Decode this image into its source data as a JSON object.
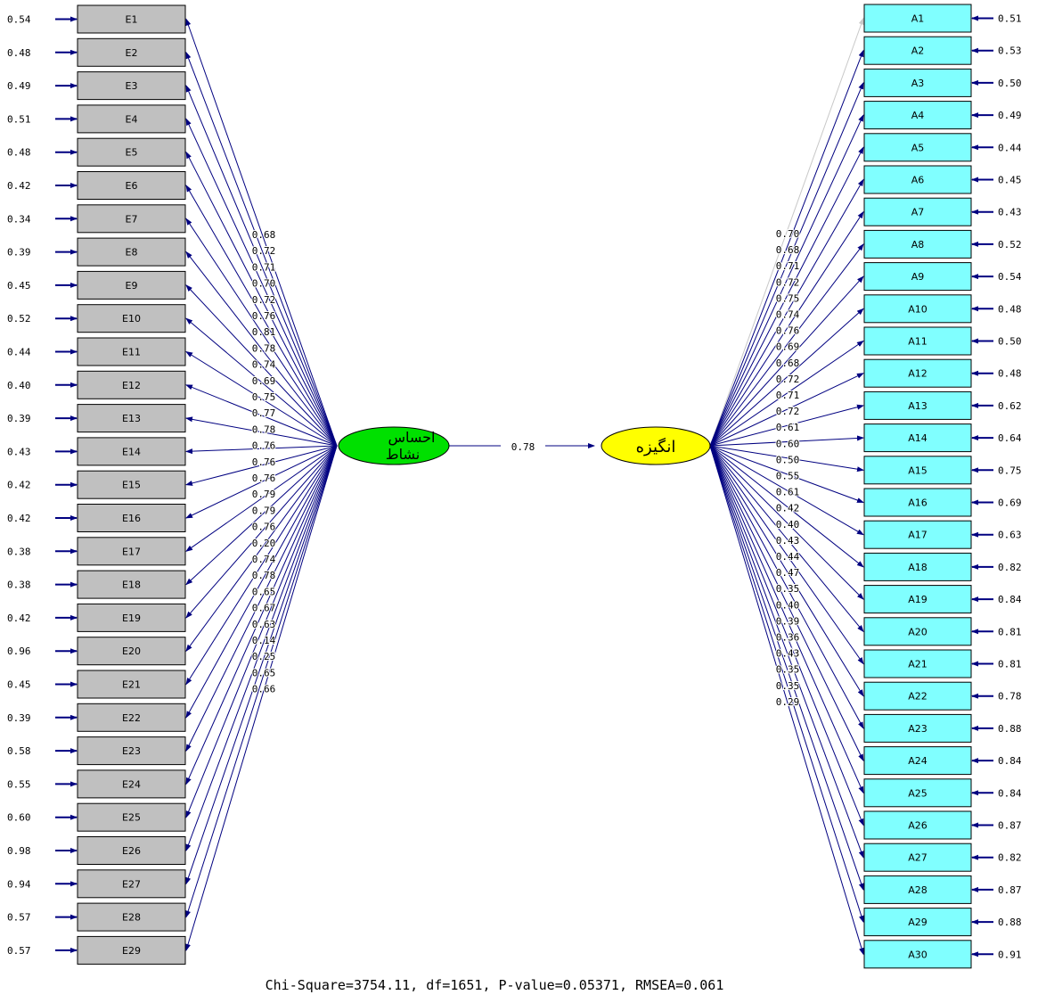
{
  "colors": {
    "arrow": "#000080",
    "ebox_fill": "#c0c0c0",
    "abox_fill": "#80ffff",
    "latent_left_fill": "#00e000",
    "latent_right_fill": "#ffff00",
    "faint_arrow": "#c8c8c8"
  },
  "left_latent": {
    "label_line1": "احساس",
    "label_line2": "نشاط"
  },
  "right_latent": {
    "label": "انگیزه"
  },
  "structural_path": {
    "value": "0.78"
  },
  "left_indicators": [
    {
      "label": "E1",
      "error": "0.54",
      "loading": "0.68"
    },
    {
      "label": "E2",
      "error": "0.48",
      "loading": "0.72"
    },
    {
      "label": "E3",
      "error": "0.49",
      "loading": "0.71"
    },
    {
      "label": "E4",
      "error": "0.51",
      "loading": "0.70"
    },
    {
      "label": "E5",
      "error": "0.48",
      "loading": "0.72"
    },
    {
      "label": "E6",
      "error": "0.42",
      "loading": "0.76"
    },
    {
      "label": "E7",
      "error": "0.34",
      "loading": "0.81"
    },
    {
      "label": "E8",
      "error": "0.39",
      "loading": "0.78"
    },
    {
      "label": "E9",
      "error": "0.45",
      "loading": "0.74"
    },
    {
      "label": "E10",
      "error": "0.52",
      "loading": "0.69"
    },
    {
      "label": "E11",
      "error": "0.44",
      "loading": "0.75"
    },
    {
      "label": "E12",
      "error": "0.40",
      "loading": "0.77"
    },
    {
      "label": "E13",
      "error": "0.39",
      "loading": "0.78"
    },
    {
      "label": "E14",
      "error": "0.43",
      "loading": "0.76"
    },
    {
      "label": "E15",
      "error": "0.42",
      "loading": "0.76"
    },
    {
      "label": "E16",
      "error": "0.42",
      "loading": "0.76"
    },
    {
      "label": "E17",
      "error": "0.38",
      "loading": "0.79"
    },
    {
      "label": "E18",
      "error": "0.38",
      "loading": "0.79"
    },
    {
      "label": "E19",
      "error": "0.42",
      "loading": "0.76"
    },
    {
      "label": "E20",
      "error": "0.96",
      "loading": "0.20"
    },
    {
      "label": "E21",
      "error": "0.45",
      "loading": "0.74"
    },
    {
      "label": "E22",
      "error": "0.39",
      "loading": "0.78"
    },
    {
      "label": "E23",
      "error": "0.58",
      "loading": "0.65"
    },
    {
      "label": "E24",
      "error": "0.55",
      "loading": "0.67"
    },
    {
      "label": "E25",
      "error": "0.60",
      "loading": "0.63"
    },
    {
      "label": "E26",
      "error": "0.98",
      "loading": "0.14"
    },
    {
      "label": "E27",
      "error": "0.94",
      "loading": "0.25"
    },
    {
      "label": "E28",
      "error": "0.57",
      "loading": "0.65"
    },
    {
      "label": "E29",
      "error": "0.57",
      "loading": "0.66"
    }
  ],
  "right_indicators": [
    {
      "label": "A1",
      "error": "0.51",
      "loading": "0.70"
    },
    {
      "label": "A2",
      "error": "0.53",
      "loading": "0.68"
    },
    {
      "label": "A3",
      "error": "0.50",
      "loading": "0.71"
    },
    {
      "label": "A4",
      "error": "0.49",
      "loading": "0.72"
    },
    {
      "label": "A5",
      "error": "0.44",
      "loading": "0.75"
    },
    {
      "label": "A6",
      "error": "0.45",
      "loading": "0.74"
    },
    {
      "label": "A7",
      "error": "0.43",
      "loading": "0.76"
    },
    {
      "label": "A8",
      "error": "0.52",
      "loading": "0.69"
    },
    {
      "label": "A9",
      "error": "0.54",
      "loading": "0.68"
    },
    {
      "label": "A10",
      "error": "0.48",
      "loading": "0.72"
    },
    {
      "label": "A11",
      "error": "0.50",
      "loading": "0.71"
    },
    {
      "label": "A12",
      "error": "0.48",
      "loading": "0.72"
    },
    {
      "label": "A13",
      "error": "0.62",
      "loading": "0.61"
    },
    {
      "label": "A14",
      "error": "0.64",
      "loading": "0.60"
    },
    {
      "label": "A15",
      "error": "0.75",
      "loading": "0.50"
    },
    {
      "label": "A16",
      "error": "0.69",
      "loading": "0.55"
    },
    {
      "label": "A17",
      "error": "0.63",
      "loading": "0.61"
    },
    {
      "label": "A18",
      "error": "0.82",
      "loading": "0.42"
    },
    {
      "label": "A19",
      "error": "0.84",
      "loading": "0.40"
    },
    {
      "label": "A20",
      "error": "0.81",
      "loading": "0.43"
    },
    {
      "label": "A21",
      "error": "0.81",
      "loading": "0.44"
    },
    {
      "label": "A22",
      "error": "0.78",
      "loading": "0.47"
    },
    {
      "label": "A23",
      "error": "0.88",
      "loading": "0.35"
    },
    {
      "label": "A24",
      "error": "0.84",
      "loading": "0.40"
    },
    {
      "label": "A25",
      "error": "0.84",
      "loading": "0.39"
    },
    {
      "label": "A26",
      "error": "0.87",
      "loading": "0.36"
    },
    {
      "label": "A27",
      "error": "0.82",
      "loading": "0.43"
    },
    {
      "label": "A28",
      "error": "0.87",
      "loading": "0.35"
    },
    {
      "label": "A29",
      "error": "0.88",
      "loading": "0.35"
    },
    {
      "label": "A30",
      "error": "0.91",
      "loading": "0.29"
    }
  ],
  "fit_statistics": "Chi-Square=3754.11, df=1651, P-value=0.05371, RMSEA=0.061"
}
